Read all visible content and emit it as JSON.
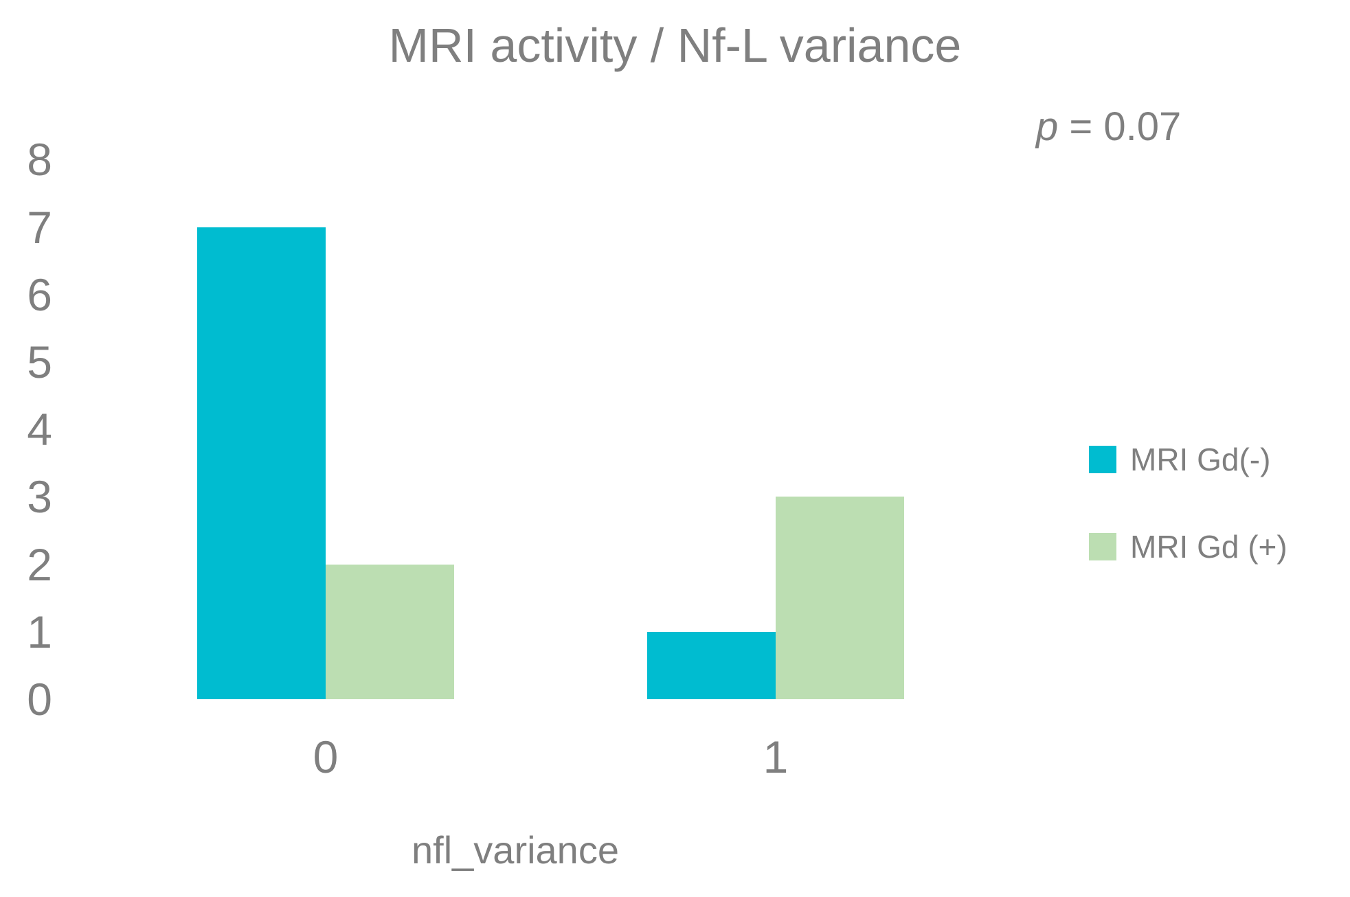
{
  "text_color": "#7F7F7F",
  "background_color": "#FFFFFF",
  "chart_data": {
    "type": "bar",
    "title": "MRI activity / Nf-L variance",
    "xlabel": "nfl_variance",
    "ylabel": "",
    "categories": [
      "0",
      "1"
    ],
    "series": [
      {
        "name": "MRI Gd(-)",
        "color": "#00BCD0",
        "values": [
          7,
          1
        ]
      },
      {
        "name": "MRI Gd (+)",
        "color": "#BCDEB2",
        "values": [
          2,
          3
        ]
      }
    ],
    "y_ticks": [
      0,
      1,
      2,
      3,
      4,
      5,
      6,
      7,
      8
    ],
    "ylim": [
      0,
      8
    ],
    "grid": false,
    "axis_lines": false,
    "legend_position": "right",
    "annotation": {
      "symbol": "p",
      "rest": " = 0.07",
      "text": "p = 0.07"
    }
  }
}
